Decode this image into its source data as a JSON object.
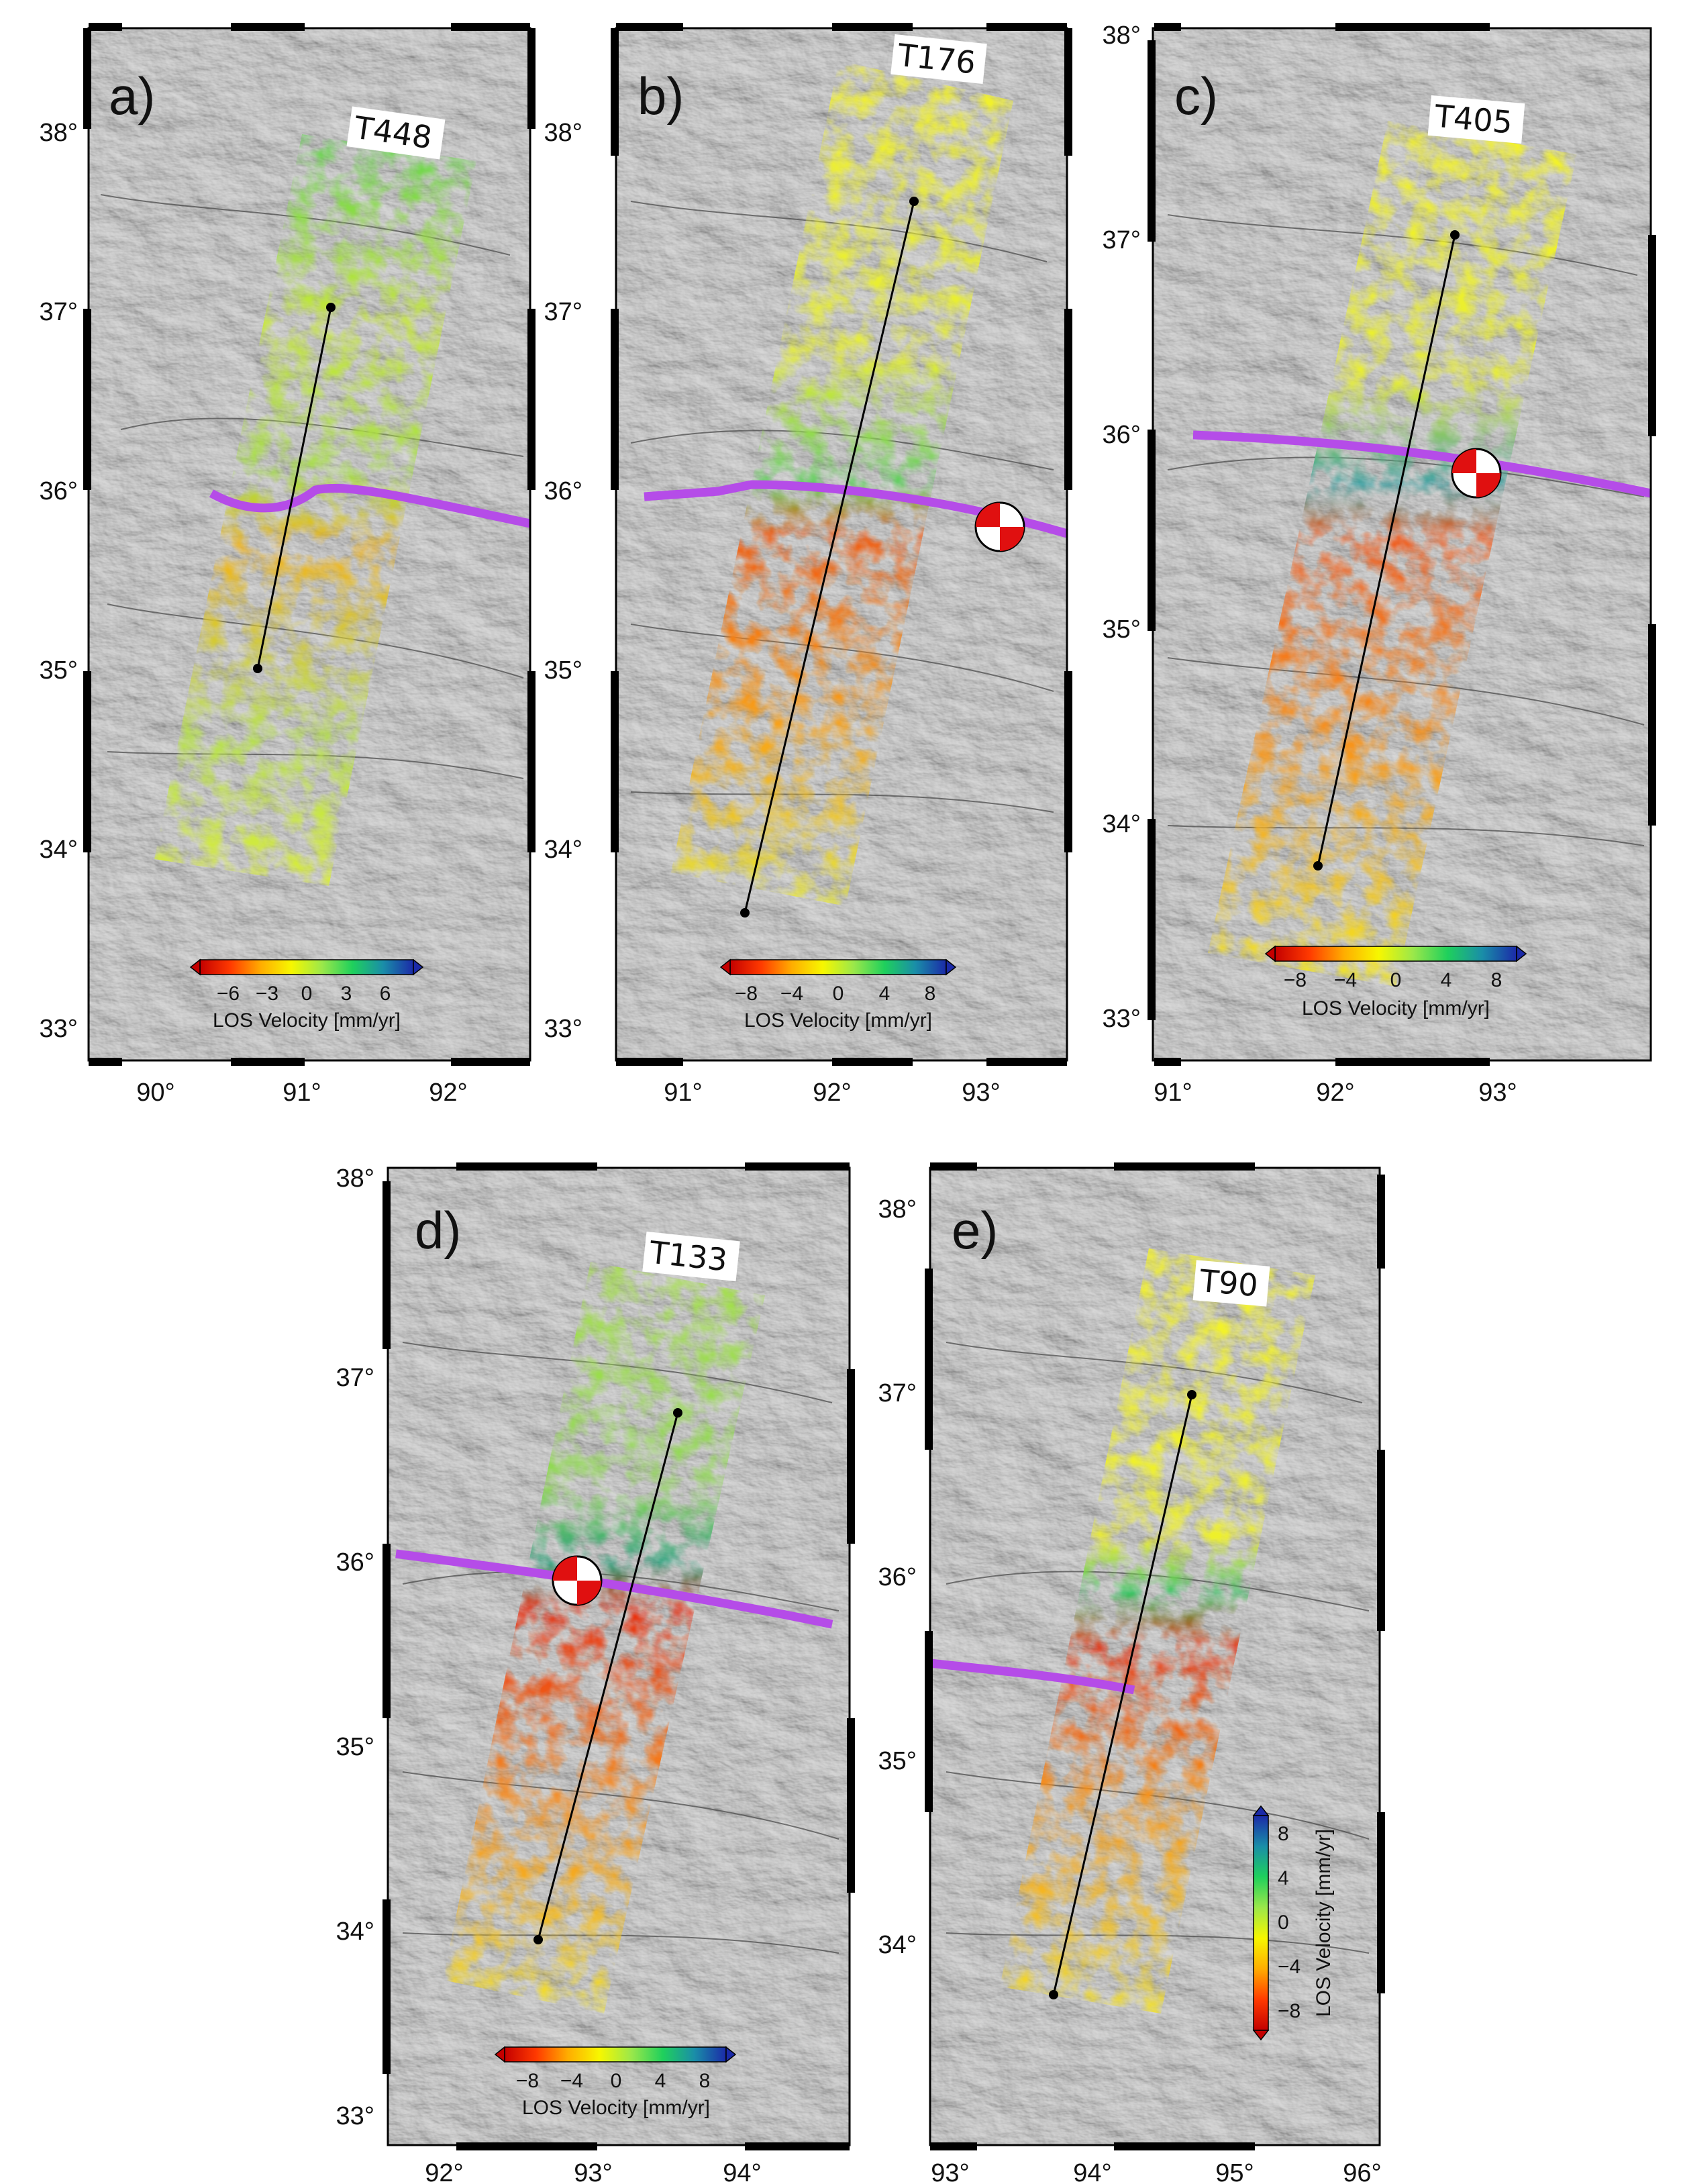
{
  "figure": {
    "colors": {
      "plate_boundary": "#b54ce8",
      "profile_line": "#000000",
      "relief_base": "#c4c4c4",
      "beachball_red": "#e01010"
    },
    "colorbar_gradient": [
      "#c40000",
      "#ff3a00",
      "#ffad00",
      "#f7f700",
      "#9be84a",
      "#1fd05c",
      "#1a8ea8",
      "#1b2aa8"
    ],
    "panels": [
      {
        "id": "a",
        "letter": "a)",
        "track": "T448",
        "lon_ticks": [
          "90°",
          "91°",
          "92°"
        ],
        "lat_ticks": [
          "33°",
          "34°",
          "35°",
          "36°",
          "37°",
          "38°"
        ],
        "profile": {
          "start": {
            "lon": 91.2,
            "lat": 37.0
          },
          "end": {
            "lon": 90.7,
            "lat": 35.0
          }
        },
        "colorbar": {
          "ticks": [
            "−6",
            "−3",
            "0",
            "3",
            "6"
          ],
          "label": "LOS Velocity [mm/yr]",
          "orientation": "horizontal"
        },
        "has_beachball": false
      },
      {
        "id": "b",
        "letter": "b)",
        "track": "T176",
        "lon_ticks": [
          "91°",
          "92°",
          "93°"
        ],
        "lat_ticks": [
          "33°",
          "34°",
          "35°",
          "36°",
          "37°",
          "38°"
        ],
        "profile": {
          "start": {
            "lon": 92.4,
            "lat": 37.6
          },
          "end": {
            "lon": 91.2,
            "lat": 33.6
          }
        },
        "colorbar": {
          "ticks": [
            "−8",
            "−4",
            "0",
            "4",
            "8"
          ],
          "label": "LOS Velocity [mm/yr]",
          "orientation": "horizontal"
        },
        "has_beachball": true
      },
      {
        "id": "c",
        "letter": "c)",
        "track": "T405",
        "lon_ticks": [
          "91°",
          "92°",
          "93°"
        ],
        "lat_ticks": [
          "33°",
          "34°",
          "35°",
          "36°",
          "37°",
          "38°"
        ],
        "profile": {
          "start": {
            "lon": 92.8,
            "lat": 37.0
          },
          "end": {
            "lon": 91.9,
            "lat": 33.8
          }
        },
        "colorbar": {
          "ticks": [
            "−8",
            "−4",
            "0",
            "4",
            "8"
          ],
          "label": "LOS Velocity [mm/yr]",
          "orientation": "horizontal"
        },
        "has_beachball": true
      },
      {
        "id": "d",
        "letter": "d)",
        "track": "T133",
        "lon_ticks": [
          "92°",
          "93°",
          "94°"
        ],
        "lat_ticks": [
          "33°",
          "34°",
          "35°",
          "36°",
          "37°",
          "38°"
        ],
        "profile": {
          "start": {
            "lon": 93.6,
            "lat": 37.1
          },
          "end": {
            "lon": 92.7,
            "lat": 33.8
          }
        },
        "colorbar": {
          "ticks": [
            "−8",
            "−4",
            "0",
            "4",
            "8"
          ],
          "label": "LOS Velocity [mm/yr]",
          "orientation": "horizontal"
        },
        "has_beachball": true
      },
      {
        "id": "e",
        "letter": "e)",
        "track": "T90",
        "lon_ticks": [
          "93°",
          "94°",
          "95°",
          "96°"
        ],
        "lat_ticks": [
          "34°",
          "35°",
          "36°",
          "37°",
          "38°"
        ],
        "profile": {
          "start": {
            "lon": 94.8,
            "lat": 37.0
          },
          "end": {
            "lon": 93.8,
            "lat": 33.4
          }
        },
        "colorbar": {
          "ticks": [
            "8",
            "4",
            "0",
            "−4",
            "−8"
          ],
          "label": "LOS Velocity [mm/yr]",
          "orientation": "vertical"
        },
        "has_beachball": false
      }
    ]
  }
}
